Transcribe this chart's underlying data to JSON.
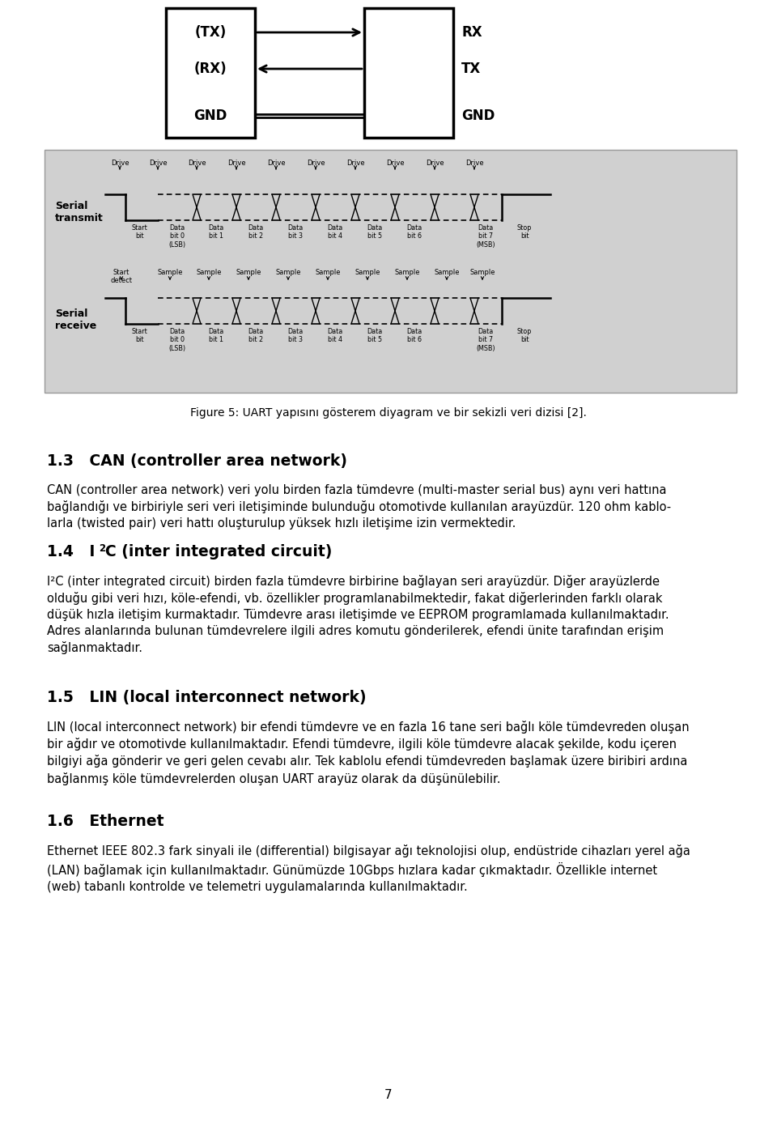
{
  "bg_color": "#ffffff",
  "figure_caption": "Figure 5: UART yapısını gösterem diyagram ve bir sekizli veri dizisi [2].",
  "section_13_title": "1.3   CAN (controller area network)",
  "section_13_body": "CAN (controller area network) veri yolu birden fazla tümdevre (multi-master serial bus) aynı veri hattına\nbağlandığı ve birbiriyle seri veri iletişiminde bulunduğu otomotivde kullanılan arayüzdür. 120 ohm kablo-\nlarla (twisted pair) veri hattı oluşturulup yüksek hızlı iletişime izin vermektedir.",
  "section_14_title_pre": "1.4   I",
  "section_14_title_post": "C (inter integrated circuit)",
  "section_14_body": "I²C (inter integrated circuit) birden fazla tümdevre birbirine bağlayan seri arayüzdür. Diğer arayüzlerde\nolduğu gibi veri hızı, köle-efendi, vb. özellikler programlanabilmektedir, fakat diğerlerinden farklı olarak\ndüşük hızla iletişim kurmaktadır. Tümdevre arası iletişimde ve EEPROM programlamada kullanılmaktadır.\nAdres alanlarında bulunan tümdevrelere ilgili adres komutu gönderilerek, efendi ünite tarafından erişim\nsağlanmaktadır.",
  "section_15_title": "1.5   LIN (local interconnect network)",
  "section_15_body": "LIN (local interconnect network) bir efendi tümdevre ve en fazla 16 tane seri bağlı köle tümdevreden oluşan\nbir ağdır ve otomotivde kullanılmaktadır. Efendi tümdevre, ilgili köle tümdevre alacak şekilde, kodu içeren\nbilgiyi ağa gönderir ve geri gelen cevabı alır. Tek kablolu efendi tümdevreden başlamak üzere biribiri ardına\nbağlanmış köle tümdevrelerden oluşan UART arayüz olarak da düşünülebilir.",
  "section_16_title": "1.6   Ethernet",
  "section_16_body": "Ethernet IEEE 802.3 fark sinyali ile (differential) bilgisayar ağı teknolojisi olup, endüstride cihazları yerel ağa\n(LAN) bağlamak için kullanılmaktadır. Günümüzde 10Gbps hızlara kadar çıkmaktadır. Özellikle internet\n(web) tabanlı kontrolde ve telemetri uygulamalarında kullanılmaktadır.",
  "page_number": "7",
  "diagram_bg": "#d0d0d0"
}
